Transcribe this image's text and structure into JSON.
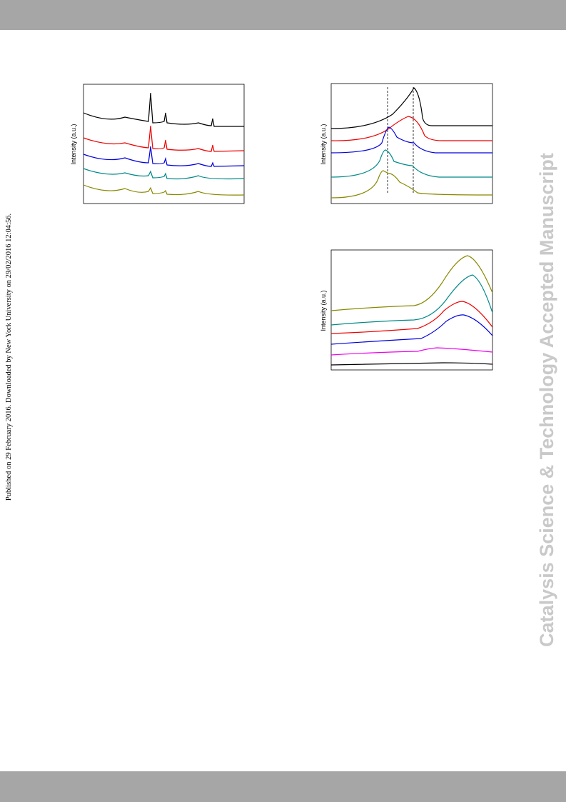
{
  "side_note": "Published on 29 February 2016. Downloaded by New York University on 29/02/2016 12:04:56.",
  "watermark": "Catalysis Science & Technology Accepted Manuscript",
  "figures": [
    {
      "y_label": "Intensity (a.u.)"
    },
    {
      "y_label": "Intensity (a.u.)"
    },
    {
      "y_label": "Intensity (a.u.)"
    }
  ]
}
